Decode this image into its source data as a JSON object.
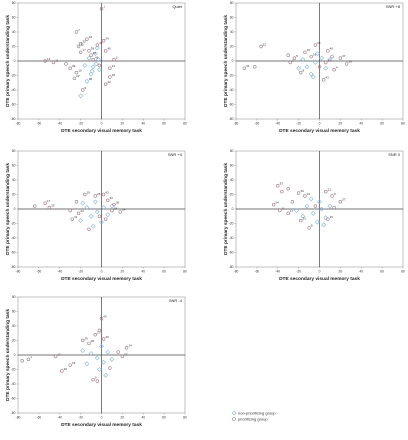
{
  "colors": {
    "non_prioritizing": "#7fb7e0",
    "prioritizing": "#a07a86",
    "axis": "#444444",
    "frame": "#9a9a9a"
  },
  "legend": {
    "items": [
      {
        "label": "non-prioritizing group",
        "color": "#7fb7e0"
      },
      {
        "label": "prioritizing group",
        "color": "#a07a86"
      }
    ]
  },
  "chart_data": [
    {
      "type": "scatter",
      "title": "Quiet",
      "xlabel": "DTE secondary visual memory task",
      "ylabel": "DTE primary speech understanding task",
      "xlim": [
        -80,
        80
      ],
      "ylim": [
        -80,
        80
      ],
      "xticks": [
        -80,
        -60,
        -40,
        -20,
        0,
        20,
        40,
        60,
        80
      ],
      "yticks": [
        -80,
        -60,
        -40,
        -20,
        0,
        20,
        40,
        60,
        80
      ],
      "series": [
        {
          "name": "non-prioritizing group",
          "points": [
            {
              "x": -20,
              "y": -48,
              "label": ""
            },
            {
              "x": -14,
              "y": -28,
              "label": "38"
            },
            {
              "x": -10,
              "y": -18,
              "label": ""
            },
            {
              "x": -8,
              "y": -8,
              "label": ""
            },
            {
              "x": -5,
              "y": -4,
              "label": ""
            },
            {
              "x": -3,
              "y": 2,
              "label": ""
            },
            {
              "x": -6,
              "y": 10,
              "label": ""
            },
            {
              "x": -2,
              "y": -12,
              "label": ""
            },
            {
              "x": -12,
              "y": 4,
              "label": ""
            },
            {
              "x": -9,
              "y": -14,
              "label": ""
            },
            {
              "x": -16,
              "y": -6,
              "label": ""
            },
            {
              "x": -4,
              "y": 18,
              "label": ""
            }
          ]
        },
        {
          "name": "prioritizing group",
          "points": [
            {
              "x": 0,
              "y": 72,
              "label": "1"
            },
            {
              "x": -24,
              "y": 40,
              "label": "7"
            },
            {
              "x": -14,
              "y": 30,
              "label": "44"
            },
            {
              "x": 2,
              "y": 28,
              "label": "24"
            },
            {
              "x": -4,
              "y": 22,
              "label": "42"
            },
            {
              "x": -20,
              "y": 24,
              "label": "32"
            },
            {
              "x": -22,
              "y": 20,
              "label": "15"
            },
            {
              "x": 4,
              "y": 14,
              "label": "40"
            },
            {
              "x": -20,
              "y": 12,
              "label": "17"
            },
            {
              "x": 12,
              "y": 2,
              "label": "2"
            },
            {
              "x": -54,
              "y": 0,
              "label": "13"
            },
            {
              "x": -46,
              "y": -2,
              "label": "11"
            },
            {
              "x": -34,
              "y": -4,
              "label": ""
            },
            {
              "x": -30,
              "y": -10,
              "label": "39"
            },
            {
              "x": -26,
              "y": -24,
              "label": "22"
            },
            {
              "x": -18,
              "y": -40,
              "label": "9"
            },
            {
              "x": 4,
              "y": -32,
              "label": "42"
            },
            {
              "x": 8,
              "y": -22,
              "label": "18"
            },
            {
              "x": 8,
              "y": -10,
              "label": "14"
            },
            {
              "x": -12,
              "y": 14,
              "label": "39"
            },
            {
              "x": -10,
              "y": 8,
              "label": "16"
            },
            {
              "x": -8,
              "y": 2,
              "label": "41"
            },
            {
              "x": -24,
              "y": -16,
              "label": "10"
            },
            {
              "x": -2,
              "y": -6,
              "label": ""
            }
          ]
        }
      ]
    },
    {
      "type": "scatter",
      "title": "SNR +8",
      "xlabel": "DTE secondary visual memory task",
      "ylabel": "DTE primary speech understanding task",
      "xlim": [
        -80,
        80
      ],
      "ylim": [
        -80,
        80
      ],
      "xticks": [
        -80,
        -60,
        -40,
        -20,
        0,
        20,
        40,
        60,
        80
      ],
      "yticks": [
        -80,
        -60,
        -40,
        -20,
        0,
        20,
        40,
        60,
        80
      ],
      "series": [
        {
          "name": "non-prioritizing group",
          "points": [
            {
              "x": -8,
              "y": -18,
              "label": ""
            },
            {
              "x": -12,
              "y": -8,
              "label": ""
            },
            {
              "x": -4,
              "y": -2,
              "label": ""
            },
            {
              "x": 2,
              "y": 4,
              "label": ""
            },
            {
              "x": -16,
              "y": 2,
              "label": ""
            },
            {
              "x": 6,
              "y": -10,
              "label": ""
            },
            {
              "x": -2,
              "y": 10,
              "label": ""
            },
            {
              "x": -20,
              "y": -10,
              "label": ""
            },
            {
              "x": 10,
              "y": 2,
              "label": ""
            },
            {
              "x": -6,
              "y": -22,
              "label": ""
            }
          ]
        },
        {
          "name": "prioritizing group",
          "points": [
            {
              "x": -56,
              "y": 20,
              "label": "12"
            },
            {
              "x": -72,
              "y": -10,
              "label": "31"
            },
            {
              "x": -62,
              "y": -8,
              "label": ""
            },
            {
              "x": -4,
              "y": 22,
              "label": "28"
            },
            {
              "x": 8,
              "y": 14,
              "label": "40"
            },
            {
              "x": 20,
              "y": 4,
              "label": "37"
            },
            {
              "x": 26,
              "y": -4,
              "label": "29"
            },
            {
              "x": 14,
              "y": -12,
              "label": "4"
            },
            {
              "x": 4,
              "y": -26,
              "label": "43"
            },
            {
              "x": -28,
              "y": -2,
              "label": "1"
            },
            {
              "x": -24,
              "y": 4,
              "label": "5"
            },
            {
              "x": -14,
              "y": 12,
              "label": "15"
            },
            {
              "x": -8,
              "y": 6,
              "label": "19"
            },
            {
              "x": -18,
              "y": -16,
              "label": "8"
            },
            {
              "x": 6,
              "y": -2,
              "label": "20"
            },
            {
              "x": -30,
              "y": 8,
              "label": ""
            },
            {
              "x": 12,
              "y": 6,
              "label": ""
            },
            {
              "x": 0,
              "y": -8,
              "label": ""
            }
          ]
        }
      ]
    },
    {
      "type": "scatter",
      "title": "SNR +4",
      "xlabel": "DTE secondary visual memory task",
      "ylabel": "DTE primary speech understanding task",
      "xlim": [
        -80,
        80
      ],
      "ylim": [
        -80,
        80
      ],
      "xticks": [
        -80,
        -60,
        -40,
        -20,
        0,
        20,
        40,
        60,
        80
      ],
      "yticks": [
        -80,
        -60,
        -40,
        -20,
        0,
        20,
        40,
        60,
        80
      ],
      "series": [
        {
          "name": "non-prioritizing group",
          "points": [
            {
              "x": -10,
              "y": -10,
              "label": ""
            },
            {
              "x": -4,
              "y": -4,
              "label": ""
            },
            {
              "x": 2,
              "y": 2,
              "label": ""
            },
            {
              "x": -14,
              "y": 2,
              "label": ""
            },
            {
              "x": 6,
              "y": -8,
              "label": ""
            },
            {
              "x": -6,
              "y": 10,
              "label": ""
            },
            {
              "x": -20,
              "y": -16,
              "label": ""
            },
            {
              "x": 0,
              "y": -18,
              "label": ""
            },
            {
              "x": -8,
              "y": -24,
              "label": ""
            },
            {
              "x": 10,
              "y": 4,
              "label": ""
            },
            {
              "x": -18,
              "y": 8,
              "label": ""
            }
          ]
        },
        {
          "name": "prioritizing group",
          "points": [
            {
              "x": -64,
              "y": 4,
              "label": ""
            },
            {
              "x": -54,
              "y": 8,
              "label": "17"
            },
            {
              "x": -50,
              "y": 2,
              "label": "29"
            },
            {
              "x": -16,
              "y": 20,
              "label": "19"
            },
            {
              "x": -6,
              "y": 18,
              "label": "28"
            },
            {
              "x": 2,
              "y": 20,
              "label": "43"
            },
            {
              "x": 6,
              "y": 12,
              "label": "22"
            },
            {
              "x": 12,
              "y": 6,
              "label": "36"
            },
            {
              "x": 10,
              "y": -2,
              "label": "18"
            },
            {
              "x": 18,
              "y": -4,
              "label": "14"
            },
            {
              "x": -24,
              "y": 10,
              "label": ""
            },
            {
              "x": -28,
              "y": -14,
              "label": "31"
            },
            {
              "x": -22,
              "y": -6,
              "label": "24"
            },
            {
              "x": -30,
              "y": -2,
              "label": ""
            },
            {
              "x": -12,
              "y": -28,
              "label": ""
            },
            {
              "x": -2,
              "y": -10,
              "label": ""
            },
            {
              "x": 4,
              "y": -14,
              "label": ""
            }
          ]
        }
      ]
    },
    {
      "type": "scatter",
      "title": "SNR 0",
      "xlabel": "DTE secondary visual memory task",
      "ylabel": "DTE primary speech understanding task",
      "xlim": [
        -80,
        80
      ],
      "ylim": [
        -80,
        80
      ],
      "xticks": [
        -80,
        -60,
        -40,
        -20,
        0,
        20,
        40,
        60,
        80
      ],
      "yticks": [
        -80,
        -60,
        -40,
        -20,
        0,
        20,
        40,
        60,
        80
      ],
      "series": [
        {
          "name": "non-prioritizing group",
          "points": [
            {
              "x": -6,
              "y": -6,
              "label": ""
            },
            {
              "x": 2,
              "y": 0,
              "label": ""
            },
            {
              "x": -12,
              "y": 4,
              "label": ""
            },
            {
              "x": 6,
              "y": -12,
              "label": ""
            },
            {
              "x": -2,
              "y": -18,
              "label": ""
            },
            {
              "x": -16,
              "y": -10,
              "label": ""
            },
            {
              "x": 0,
              "y": 10,
              "label": ""
            },
            {
              "x": -22,
              "y": -2,
              "label": ""
            },
            {
              "x": 10,
              "y": 4,
              "label": ""
            },
            {
              "x": -8,
              "y": 14,
              "label": ""
            },
            {
              "x": 4,
              "y": -22,
              "label": ""
            }
          ]
        },
        {
          "name": "prioritizing group",
          "points": [
            {
              "x": -40,
              "y": 32,
              "label": "33"
            },
            {
              "x": -36,
              "y": 24,
              "label": ""
            },
            {
              "x": -30,
              "y": 28,
              "label": ""
            },
            {
              "x": -20,
              "y": 22,
              "label": "30"
            },
            {
              "x": -14,
              "y": 18,
              "label": "31"
            },
            {
              "x": 6,
              "y": 24,
              "label": "21"
            },
            {
              "x": 12,
              "y": 18,
              "label": "9"
            },
            {
              "x": 20,
              "y": 10,
              "label": "37"
            },
            {
              "x": 14,
              "y": 2,
              "label": ""
            },
            {
              "x": -44,
              "y": 6,
              "label": "24"
            },
            {
              "x": -38,
              "y": -2,
              "label": "11"
            },
            {
              "x": -30,
              "y": -6,
              "label": "17"
            },
            {
              "x": -18,
              "y": -16,
              "label": "23"
            },
            {
              "x": -10,
              "y": -26,
              "label": "8"
            },
            {
              "x": 8,
              "y": -14,
              "label": "19"
            },
            {
              "x": -26,
              "y": 10,
              "label": ""
            },
            {
              "x": -4,
              "y": 4,
              "label": ""
            }
          ]
        }
      ]
    },
    {
      "type": "scatter",
      "title": "SNR -4",
      "xlabel": "DTE secondary visual memory task",
      "ylabel": "DTE primary speech understanding task",
      "xlim": [
        -80,
        80
      ],
      "ylim": [
        -80,
        80
      ],
      "xticks": [
        -80,
        -60,
        -40,
        -20,
        0,
        20,
        40,
        60,
        80
      ],
      "yticks": [
        -80,
        -60,
        -40,
        -20,
        0,
        20,
        40,
        60,
        80
      ],
      "series": [
        {
          "name": "non-prioritizing group",
          "points": [
            {
              "x": -4,
              "y": -4,
              "label": ""
            },
            {
              "x": 2,
              "y": -10,
              "label": ""
            },
            {
              "x": -10,
              "y": 2,
              "label": ""
            },
            {
              "x": 6,
              "y": 4,
              "label": ""
            },
            {
              "x": -2,
              "y": -20,
              "label": ""
            },
            {
              "x": -14,
              "y": -12,
              "label": ""
            },
            {
              "x": 0,
              "y": 12,
              "label": ""
            },
            {
              "x": 4,
              "y": -28,
              "label": ""
            },
            {
              "x": -18,
              "y": 6,
              "label": ""
            },
            {
              "x": 10,
              "y": -6,
              "label": ""
            }
          ]
        },
        {
          "name": "prioritizing group",
          "points": [
            {
              "x": 0,
              "y": 50,
              "label": "43"
            },
            {
              "x": -6,
              "y": 28,
              "label": "13"
            },
            {
              "x": -2,
              "y": 34,
              "label": ""
            },
            {
              "x": -18,
              "y": 20,
              "label": "20"
            },
            {
              "x": -12,
              "y": 16,
              "label": "28"
            },
            {
              "x": 2,
              "y": 22,
              "label": "40"
            },
            {
              "x": 24,
              "y": 10,
              "label": "14"
            },
            {
              "x": 20,
              "y": -2,
              "label": "37"
            },
            {
              "x": 16,
              "y": 4,
              "label": ""
            },
            {
              "x": -44,
              "y": -2,
              "label": "17"
            },
            {
              "x": -76,
              "y": -8,
              "label": ""
            },
            {
              "x": -70,
              "y": -6,
              "label": "1"
            },
            {
              "x": -38,
              "y": -22,
              "label": "30"
            },
            {
              "x": -30,
              "y": -14,
              "label": "19"
            },
            {
              "x": -8,
              "y": -34,
              "label": "5"
            },
            {
              "x": -4,
              "y": -36,
              "label": ""
            },
            {
              "x": 8,
              "y": -18,
              "label": ""
            }
          ]
        }
      ]
    }
  ]
}
